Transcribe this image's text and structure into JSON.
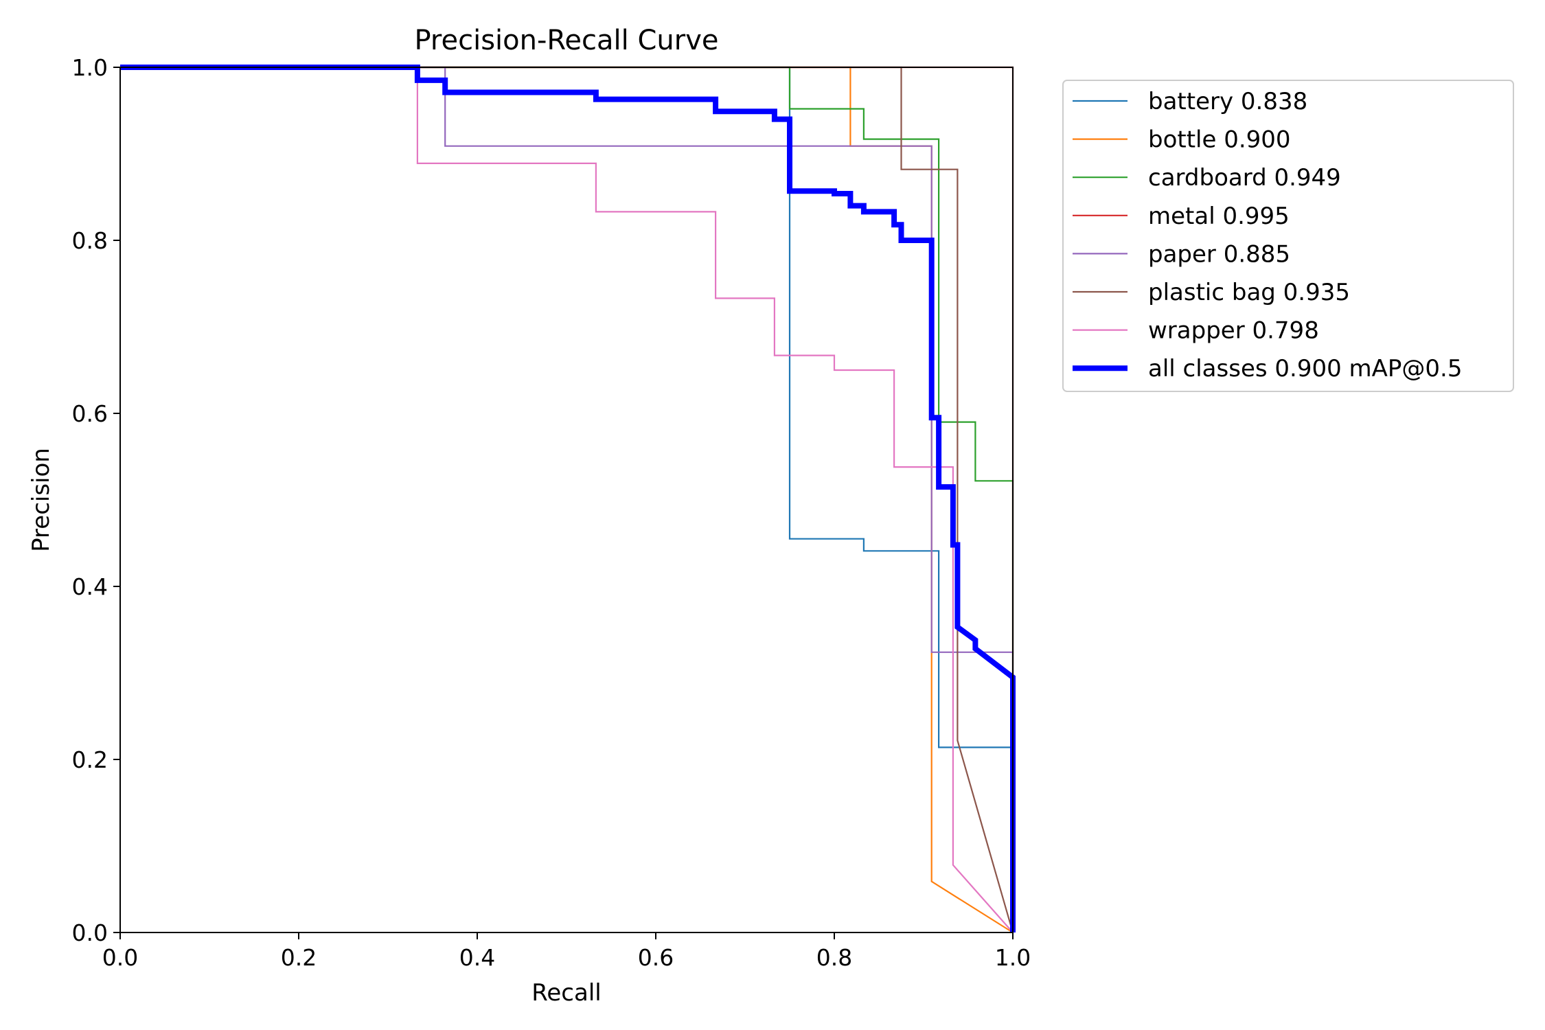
{
  "chart_data": {
    "type": "line",
    "title": "Precision-Recall Curve",
    "xlabel": "Recall",
    "ylabel": "Precision",
    "xlim": [
      0,
      1
    ],
    "ylim": [
      0,
      1
    ],
    "xticks": [
      "0.0",
      "0.2",
      "0.4",
      "0.6",
      "0.8",
      "1.0"
    ],
    "yticks": [
      "0.0",
      "0.2",
      "0.4",
      "0.6",
      "0.8",
      "1.0"
    ],
    "grid": false,
    "legend_position": "outside-right-top",
    "series": [
      {
        "name": "battery 0.838",
        "color": "#1f77b4",
        "points": [
          [
            0,
            1
          ],
          [
            0.75,
            1
          ],
          [
            0.75,
            0.455
          ],
          [
            0.833,
            0.455
          ],
          [
            0.833,
            0.441
          ],
          [
            0.917,
            0.441
          ],
          [
            0.917,
            0.214
          ],
          [
            1.0,
            0.214
          ],
          [
            1.0,
            0
          ]
        ]
      },
      {
        "name": "bottle 0.900",
        "color": "#ff7f0e",
        "points": [
          [
            0,
            1
          ],
          [
            0.818,
            1
          ],
          [
            0.818,
            0.909
          ],
          [
            0.909,
            0.909
          ],
          [
            0.909,
            0.059
          ],
          [
            1.0,
            0
          ]
        ]
      },
      {
        "name": "cardboard 0.949",
        "color": "#2ca02c",
        "points": [
          [
            0,
            1
          ],
          [
            0.75,
            1
          ],
          [
            0.75,
            0.952
          ],
          [
            0.833,
            0.952
          ],
          [
            0.833,
            0.917
          ],
          [
            0.917,
            0.917
          ],
          [
            0.917,
            0.59
          ],
          [
            0.958,
            0.59
          ],
          [
            0.958,
            0.522
          ],
          [
            1.0,
            0.522
          ],
          [
            1.0,
            0
          ]
        ]
      },
      {
        "name": "metal 0.995",
        "color": "#d62728",
        "points": [
          [
            0,
            1
          ],
          [
            1.0,
            1
          ],
          [
            1.0,
            0
          ]
        ]
      },
      {
        "name": "paper 0.885",
        "color": "#9467bd",
        "points": [
          [
            0,
            1
          ],
          [
            0.364,
            1
          ],
          [
            0.364,
            0.909
          ],
          [
            0.909,
            0.909
          ],
          [
            0.909,
            0.324
          ],
          [
            1.0,
            0.324
          ],
          [
            1.0,
            0
          ]
        ]
      },
      {
        "name": "plastic bag 0.935",
        "color": "#8c564b",
        "points": [
          [
            0,
            1
          ],
          [
            0.875,
            1
          ],
          [
            0.875,
            0.882
          ],
          [
            0.938,
            0.882
          ],
          [
            0.938,
            0.222
          ],
          [
            1.0,
            0
          ]
        ]
      },
      {
        "name": "wrapper 0.798",
        "color": "#e377c2",
        "points": [
          [
            0,
            1
          ],
          [
            0.333,
            1
          ],
          [
            0.333,
            0.889
          ],
          [
            0.533,
            0.889
          ],
          [
            0.533,
            0.833
          ],
          [
            0.667,
            0.833
          ],
          [
            0.667,
            0.733
          ],
          [
            0.733,
            0.733
          ],
          [
            0.733,
            0.667
          ],
          [
            0.8,
            0.667
          ],
          [
            0.8,
            0.65
          ],
          [
            0.867,
            0.65
          ],
          [
            0.867,
            0.538
          ],
          [
            0.933,
            0.538
          ],
          [
            0.933,
            0.078
          ],
          [
            1.0,
            0
          ]
        ]
      },
      {
        "name": "all classes 0.900 mAP@0.5",
        "color": "#0000ff",
        "thick": true,
        "points": [
          [
            0,
            1
          ],
          [
            0.333,
            1
          ],
          [
            0.333,
            0.985
          ],
          [
            0.364,
            0.985
          ],
          [
            0.364,
            0.971
          ],
          [
            0.533,
            0.971
          ],
          [
            0.533,
            0.963
          ],
          [
            0.667,
            0.963
          ],
          [
            0.667,
            0.949
          ],
          [
            0.733,
            0.949
          ],
          [
            0.733,
            0.94
          ],
          [
            0.75,
            0.94
          ],
          [
            0.75,
            0.857
          ],
          [
            0.8,
            0.857
          ],
          [
            0.8,
            0.854
          ],
          [
            0.818,
            0.854
          ],
          [
            0.818,
            0.84
          ],
          [
            0.833,
            0.84
          ],
          [
            0.833,
            0.833
          ],
          [
            0.867,
            0.833
          ],
          [
            0.867,
            0.818
          ],
          [
            0.875,
            0.818
          ],
          [
            0.875,
            0.8
          ],
          [
            0.909,
            0.8
          ],
          [
            0.909,
            0.595
          ],
          [
            0.917,
            0.595
          ],
          [
            0.917,
            0.515
          ],
          [
            0.933,
            0.515
          ],
          [
            0.933,
            0.448
          ],
          [
            0.938,
            0.448
          ],
          [
            0.938,
            0.353
          ],
          [
            0.958,
            0.338
          ],
          [
            0.958,
            0.328
          ],
          [
            1.0,
            0.295
          ],
          [
            1.0,
            0
          ]
        ]
      }
    ]
  }
}
